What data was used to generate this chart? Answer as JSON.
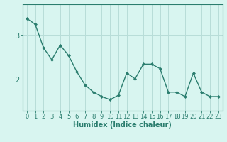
{
  "x": [
    0,
    1,
    2,
    3,
    4,
    5,
    6,
    7,
    8,
    9,
    10,
    11,
    12,
    13,
    14,
    15,
    16,
    17,
    18,
    19,
    20,
    21,
    22,
    23
  ],
  "y": [
    3.38,
    3.25,
    2.72,
    2.45,
    2.78,
    2.55,
    2.18,
    1.88,
    1.72,
    1.62,
    1.55,
    1.65,
    2.15,
    2.02,
    2.35,
    2.35,
    2.25,
    1.72,
    1.72,
    1.62,
    2.15,
    1.72,
    1.62,
    1.62
  ],
  "line_color": "#2a7d6e",
  "marker": "D",
  "marker_size": 2,
  "bg_color": "#d8f5f0",
  "grid_color": "#b8ddd8",
  "axis_color": "#2a7d6e",
  "xlabel": "Humidex (Indice chaleur)",
  "xlabel_fontsize": 7,
  "tick_fontsize": 6,
  "ylim": [
    1.3,
    3.7
  ],
  "yticks": [
    2,
    3
  ],
  "xtick_labels": [
    "0",
    "1",
    "2",
    "3",
    "4",
    "5",
    "6",
    "7",
    "8",
    "9",
    "10",
    "11",
    "12",
    "13",
    "14",
    "15",
    "16",
    "17",
    "18",
    "19",
    "20",
    "21",
    "22",
    "23"
  ]
}
